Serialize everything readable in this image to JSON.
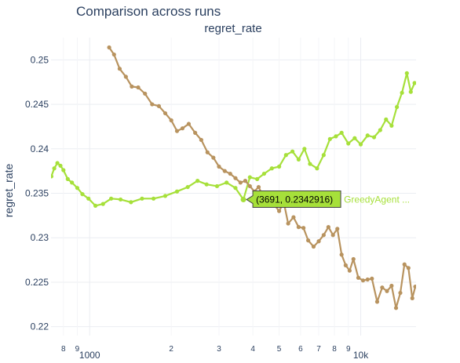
{
  "window": {
    "title": "Comparison across runs"
  },
  "chart_data": {
    "type": "line",
    "title": "Comparison across runs",
    "subtitle": "regret_rate",
    "xlabel": "",
    "ylabel": "regret_rate",
    "x_scale": "log",
    "xlim": [
      720,
      16000
    ],
    "ylim": [
      0.219,
      0.2525
    ],
    "grid": true,
    "y_ticks": [
      0.22,
      0.225,
      0.23,
      0.235,
      0.24,
      0.245,
      0.25
    ],
    "y_tick_labels": [
      "0.22",
      "0.225",
      "0.23",
      "0.235",
      "0.24",
      "0.245",
      "0.25"
    ],
    "x_major_ticks": [
      {
        "value": 1000,
        "label": "1000"
      },
      {
        "value": 10000,
        "label": "10k"
      }
    ],
    "x_minor_ticks": [
      {
        "value": 800,
        "label": "8"
      },
      {
        "value": 900,
        "label": "9"
      },
      {
        "value": 2000,
        "label": "2"
      },
      {
        "value": 3000,
        "label": "3"
      },
      {
        "value": 4000,
        "label": "4"
      },
      {
        "value": 5000,
        "label": "5"
      },
      {
        "value": 6000,
        "label": "6"
      },
      {
        "value": 7000,
        "label": "7"
      },
      {
        "value": 8000,
        "label": "8"
      },
      {
        "value": 9000,
        "label": "9"
      }
    ],
    "series": [
      {
        "name": "GreedyAgent ...",
        "color": "#a6e03a",
        "x": [
          722,
          740,
          760,
          780,
          800,
          830,
          860,
          900,
          940,
          990,
          1050,
          1120,
          1200,
          1300,
          1420,
          1560,
          1720,
          1900,
          2100,
          2300,
          2500,
          2700,
          2950,
          3200,
          3450,
          3691,
          3900,
          4150,
          4400,
          4700,
          5000,
          5300,
          5600,
          5900,
          6200,
          6500,
          6900,
          7300,
          7700,
          8100,
          8500,
          9000,
          9500,
          10000,
          10600,
          11200,
          11800,
          12400,
          13000,
          13600,
          14200,
          14800,
          15300,
          15800
        ],
        "y": [
          0.2369,
          0.2378,
          0.2384,
          0.2381,
          0.2376,
          0.2366,
          0.2362,
          0.2356,
          0.2349,
          0.2344,
          0.2336,
          0.2338,
          0.2344,
          0.2343,
          0.234,
          0.2344,
          0.2344,
          0.2347,
          0.2352,
          0.2357,
          0.2364,
          0.236,
          0.2358,
          0.2362,
          0.2356,
          0.2342916,
          0.2368,
          0.2366,
          0.2372,
          0.2378,
          0.238,
          0.2393,
          0.2397,
          0.2388,
          0.24,
          0.2383,
          0.2378,
          0.2393,
          0.2411,
          0.2414,
          0.2418,
          0.2406,
          0.2412,
          0.2405,
          0.2415,
          0.2413,
          0.2421,
          0.2433,
          0.2426,
          0.2447,
          0.2463,
          0.2485,
          0.2464,
          0.2474
        ]
      },
      {
        "name": "",
        "color": "#b8935f",
        "x": [
          1180,
          1230,
          1290,
          1360,
          1430,
          1510,
          1600,
          1700,
          1800,
          1900,
          2000,
          2100,
          2200,
          2320,
          2450,
          2580,
          2720,
          2860,
          3000,
          3150,
          3300,
          3450,
          3600,
          3750,
          3900,
          4050,
          4200,
          4400,
          4600,
          4800,
          5000,
          5200,
          5400,
          5650,
          5900,
          6150,
          6400,
          6700,
          7000,
          7300,
          7600,
          7900,
          8200,
          8500,
          8800,
          9100,
          9400,
          9800,
          10200,
          10600,
          11000,
          11500,
          12000,
          12500,
          13000,
          13500,
          14000,
          14500,
          15000,
          15500,
          15900
        ],
        "y": [
          0.2514,
          0.2506,
          0.249,
          0.2481,
          0.247,
          0.2469,
          0.2462,
          0.245,
          0.2448,
          0.244,
          0.2432,
          0.242,
          0.2423,
          0.2428,
          0.2418,
          0.241,
          0.2396,
          0.239,
          0.238,
          0.2375,
          0.2372,
          0.2367,
          0.2362,
          0.2364,
          0.2358,
          0.2352,
          0.2357,
          0.2345,
          0.2348,
          0.2337,
          0.233,
          0.234,
          0.2316,
          0.2323,
          0.2312,
          0.2311,
          0.2297,
          0.229,
          0.2296,
          0.2303,
          0.2312,
          0.2303,
          0.231,
          0.2281,
          0.2269,
          0.2263,
          0.2276,
          0.2255,
          0.2252,
          0.2253,
          0.2254,
          0.2228,
          0.2244,
          0.224,
          0.2246,
          0.2221,
          0.2238,
          0.227,
          0.2266,
          0.2232,
          0.2245
        ]
      }
    ],
    "tooltip": {
      "x": 3691,
      "y": 0.2342916,
      "text": "(3691, 0.2342916)",
      "series_label": "GreedyAgent ..."
    }
  }
}
